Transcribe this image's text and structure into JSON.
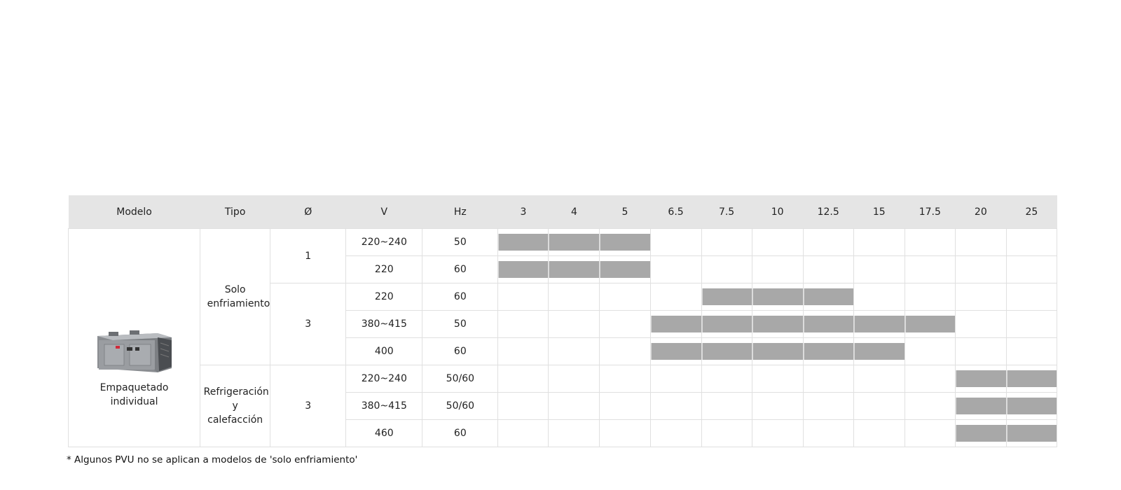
{
  "headers": [
    "Modelo",
    "Tipo",
    "Ø",
    "V",
    "Hz",
    "3",
    "4",
    "5",
    "6.5",
    "7.5",
    "10",
    "12.5",
    "15",
    "17.5",
    "20",
    "25"
  ],
  "model": {
    "name": "Empaquetado individual",
    "image_icon": "packaged-rooftop-unit-image"
  },
  "types": [
    "Solo enfriamiento",
    "Refrigeración y calefacción"
  ],
  "phases": [
    "1",
    "3",
    "3"
  ],
  "rows": [
    {
      "v": "220~240",
      "hz": "50",
      "capacities": [
        true,
        true,
        true,
        false,
        false,
        false,
        false,
        false,
        false,
        false,
        false
      ]
    },
    {
      "v": "220",
      "hz": "60",
      "capacities": [
        true,
        true,
        true,
        false,
        false,
        false,
        false,
        false,
        false,
        false,
        false
      ]
    },
    {
      "v": "220",
      "hz": "60",
      "capacities": [
        false,
        false,
        false,
        false,
        true,
        true,
        true,
        false,
        false,
        false,
        false
      ]
    },
    {
      "v": "380~415",
      "hz": "50",
      "capacities": [
        false,
        false,
        false,
        true,
        true,
        true,
        true,
        true,
        true,
        false,
        false
      ]
    },
    {
      "v": "400",
      "hz": "60",
      "capacities": [
        false,
        false,
        false,
        true,
        true,
        true,
        true,
        true,
        false,
        false,
        false
      ]
    },
    {
      "v": "220~240",
      "hz": "50/60",
      "capacities": [
        false,
        false,
        false,
        false,
        false,
        false,
        false,
        false,
        false,
        true,
        true
      ]
    },
    {
      "v": "380~415",
      "hz": "50/60",
      "capacities": [
        false,
        false,
        false,
        false,
        false,
        false,
        false,
        false,
        false,
        true,
        true
      ]
    },
    {
      "v": "460",
      "hz": "60",
      "capacities": [
        false,
        false,
        false,
        false,
        false,
        false,
        false,
        false,
        false,
        true,
        true
      ]
    }
  ],
  "colors": {
    "header_bg": "#e5e5e5",
    "bar": "#a8a8a8",
    "border": "#e0e0e0"
  },
  "footnote": "* Algunos PVU no se aplican a modelos de 'solo enfriamiento'"
}
